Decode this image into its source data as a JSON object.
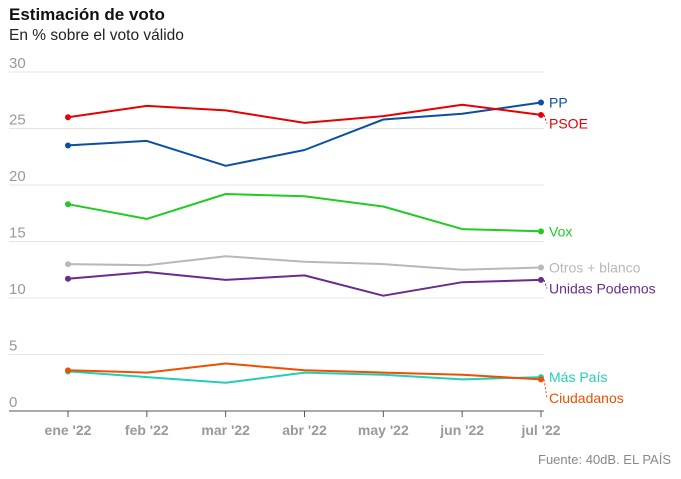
{
  "header": {
    "title": "Estimación de voto",
    "subtitle": "En % sobre el voto válido"
  },
  "footer": {
    "source": "Fuente: 40dB. EL PAÍS"
  },
  "chart_data": {
    "type": "line",
    "title": "Estimación de voto",
    "subtitle": "En % sobre el voto válido",
    "xlabel": "",
    "ylabel": "",
    "categories": [
      "ene '22",
      "feb '22",
      "mar '22",
      "abr '22",
      "may '22",
      "jun '22",
      "jul '22"
    ],
    "ylim": [
      0,
      30
    ],
    "yticks": [
      0,
      5,
      10,
      15,
      20,
      25,
      30
    ],
    "grid": true,
    "legend": "direct-labels-right",
    "series": [
      {
        "name": "PP",
        "color": "#0b4fa0",
        "values": [
          23.5,
          23.9,
          21.7,
          23.1,
          25.8,
          26.3,
          27.3
        ]
      },
      {
        "name": "PSOE",
        "color": "#e60000",
        "values": [
          26.0,
          27.0,
          26.6,
          25.5,
          26.1,
          27.1,
          26.2
        ]
      },
      {
        "name": "Vox",
        "color": "#1fcc1f",
        "values": [
          18.3,
          17.0,
          19.2,
          19.0,
          18.1,
          16.1,
          15.9
        ]
      },
      {
        "name": "Otros + blanco",
        "color": "#b8b8b8",
        "values": [
          13.0,
          12.9,
          13.7,
          13.2,
          13.0,
          12.5,
          12.7
        ]
      },
      {
        "name": "Unidas Podemos",
        "color": "#6a2a8e",
        "values": [
          11.7,
          12.3,
          11.6,
          12.0,
          10.2,
          11.4,
          11.6
        ]
      },
      {
        "name": "Más País",
        "color": "#22cfb6",
        "values": [
          3.5,
          3.0,
          2.5,
          3.4,
          3.2,
          2.8,
          3.0
        ]
      },
      {
        "name": "Ciudadanos",
        "color": "#f04e00",
        "values": [
          3.6,
          3.4,
          4.2,
          3.6,
          3.4,
          3.2,
          2.8
        ]
      }
    ]
  }
}
